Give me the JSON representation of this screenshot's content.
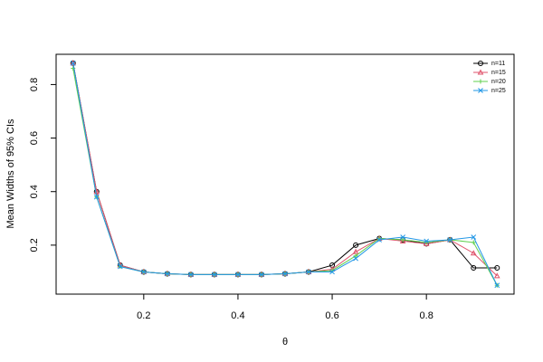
{
  "chart_data": {
    "type": "line",
    "x_label": "θ",
    "y_label": "Mean Widths of 95% CIs",
    "x": [
      0.05,
      0.1,
      0.15,
      0.2,
      0.25,
      0.3,
      0.35,
      0.4,
      0.45,
      0.5,
      0.55,
      0.6,
      0.65,
      0.7,
      0.75,
      0.8,
      0.85,
      0.9,
      0.95
    ],
    "series": [
      {
        "name": "n=11",
        "color": "#000000",
        "marker": "circle",
        "values": [
          0.88,
          0.4,
          0.125,
          0.1,
          0.093,
          0.09,
          0.09,
          0.09,
          0.09,
          0.093,
          0.1,
          0.125,
          0.2,
          0.225,
          0.22,
          0.205,
          0.22,
          0.115,
          0.115
        ]
      },
      {
        "name": "n=15",
        "color": "#DF536B",
        "marker": "triangle",
        "values": [
          0.88,
          0.4,
          0.125,
          0.1,
          0.093,
          0.09,
          0.09,
          0.09,
          0.09,
          0.093,
          0.1,
          0.11,
          0.175,
          0.225,
          0.215,
          0.205,
          0.22,
          0.17,
          0.085
        ]
      },
      {
        "name": "n=20",
        "color": "#61D04F",
        "marker": "plus",
        "values": [
          0.86,
          0.38,
          0.12,
          0.1,
          0.093,
          0.09,
          0.09,
          0.09,
          0.09,
          0.093,
          0.1,
          0.105,
          0.16,
          0.225,
          0.22,
          0.21,
          0.22,
          0.21,
          0.05
        ]
      },
      {
        "name": "n=25",
        "color": "#2297E6",
        "marker": "cross",
        "values": [
          0.88,
          0.38,
          0.12,
          0.1,
          0.093,
          0.09,
          0.09,
          0.09,
          0.09,
          0.093,
          0.1,
          0.1,
          0.15,
          0.22,
          0.23,
          0.215,
          0.22,
          0.23,
          0.05
        ]
      }
    ],
    "xlim": [
      0.014,
      0.986
    ],
    "ylim": [
      0.017,
      0.913
    ],
    "xticks": [
      0.2,
      0.4,
      0.6,
      0.8
    ],
    "yticks": [
      0.2,
      0.4,
      0.6,
      0.8
    ],
    "legend": "top-right",
    "grid": false
  }
}
